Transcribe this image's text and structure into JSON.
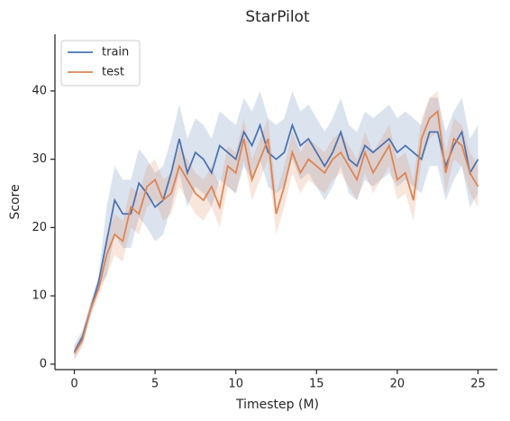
{
  "chart_data": {
    "type": "line",
    "title": "StarPilot",
    "xlabel": "Timestep (M)",
    "ylabel": "Score",
    "x": [
      0,
      0.5,
      1,
      1.5,
      2,
      2.5,
      3,
      3.5,
      4,
      4.5,
      5,
      5.5,
      6,
      6.5,
      7,
      7.5,
      8,
      8.5,
      9,
      9.5,
      10,
      10.5,
      11,
      11.5,
      12,
      12.5,
      13,
      13.5,
      14,
      14.5,
      15,
      15.5,
      16,
      16.5,
      17,
      17.5,
      18,
      18.5,
      19,
      19.5,
      20,
      20.5,
      21,
      21.5,
      22,
      22.5,
      23,
      23.5,
      24,
      24.5,
      25
    ],
    "series": [
      {
        "name": "train",
        "color": "#4c72b0",
        "values": [
          1.8,
          4,
          8,
          12,
          18,
          24,
          22,
          22,
          26.5,
          25,
          23,
          24,
          28,
          33,
          28,
          31,
          30,
          28,
          32,
          31,
          30,
          34,
          32,
          35,
          31,
          30,
          31,
          35,
          32,
          33,
          31,
          29,
          31,
          34,
          30,
          29,
          32,
          31,
          32,
          33,
          31,
          32,
          31,
          30,
          34,
          34,
          29,
          32,
          34,
          28,
          30
        ],
        "lower": [
          0.8,
          3,
          7,
          11,
          13,
          19,
          17,
          17,
          21.5,
          20,
          18,
          19,
          23,
          28,
          23,
          26,
          25,
          23,
          27,
          26,
          25,
          29,
          27,
          30,
          26,
          25,
          26,
          30,
          27,
          28,
          26,
          24,
          26,
          29,
          25,
          24,
          27,
          26,
          27,
          28,
          26,
          27,
          26,
          25,
          29,
          29,
          24,
          27,
          29,
          23,
          25
        ],
        "upper": [
          2.8,
          5,
          9,
          13,
          23,
          29,
          27,
          27,
          31.5,
          30,
          28,
          29,
          33,
          38,
          33,
          36,
          35,
          33,
          37,
          36,
          35,
          39,
          37,
          40,
          36,
          35,
          36,
          40,
          37,
          38,
          36,
          34,
          36,
          39,
          35,
          34,
          37,
          36,
          37,
          38,
          36,
          37,
          36,
          35,
          39,
          39,
          34,
          37,
          39,
          33,
          35
        ]
      },
      {
        "name": "test",
        "color": "#dd8452",
        "values": [
          1.6,
          3.5,
          8,
          11,
          16,
          19,
          18,
          23,
          22,
          26,
          27,
          24,
          25,
          29,
          27,
          25,
          24,
          26,
          23,
          29,
          28,
          33,
          27,
          30,
          33,
          22,
          26,
          31,
          28,
          30,
          29,
          28,
          30,
          31,
          29,
          27,
          31,
          28,
          30,
          32,
          27,
          28,
          24,
          33,
          36,
          37,
          28,
          33,
          32,
          28,
          26
        ],
        "lower": [
          0.6,
          2.5,
          7,
          10,
          13,
          16,
          15,
          20,
          19,
          23,
          24,
          21,
          22,
          26,
          24,
          22,
          21,
          23,
          20,
          26,
          25,
          30,
          24,
          27,
          30,
          19,
          23,
          28,
          25,
          27,
          26,
          25,
          27,
          28,
          26,
          24,
          28,
          25,
          27,
          29,
          24,
          25,
          21,
          30,
          33,
          34,
          25,
          30,
          29,
          25,
          23
        ],
        "upper": [
          2.6,
          4.5,
          9,
          12,
          19,
          22,
          21,
          26,
          25,
          29,
          30,
          27,
          28,
          32,
          30,
          28,
          27,
          29,
          26,
          32,
          31,
          36,
          30,
          33,
          36,
          25,
          29,
          34,
          31,
          33,
          32,
          31,
          33,
          34,
          32,
          30,
          34,
          31,
          33,
          35,
          30,
          31,
          27,
          36,
          39,
          40,
          31,
          36,
          35,
          31,
          29
        ]
      }
    ],
    "xlim": [
      -1.2,
      26.2
    ],
    "ylim": [
      -0.8,
      48.3
    ],
    "xticks": [
      0,
      5,
      10,
      15,
      20,
      25
    ],
    "yticks": [
      0,
      10,
      20,
      30,
      40
    ],
    "legend": "upper left"
  }
}
